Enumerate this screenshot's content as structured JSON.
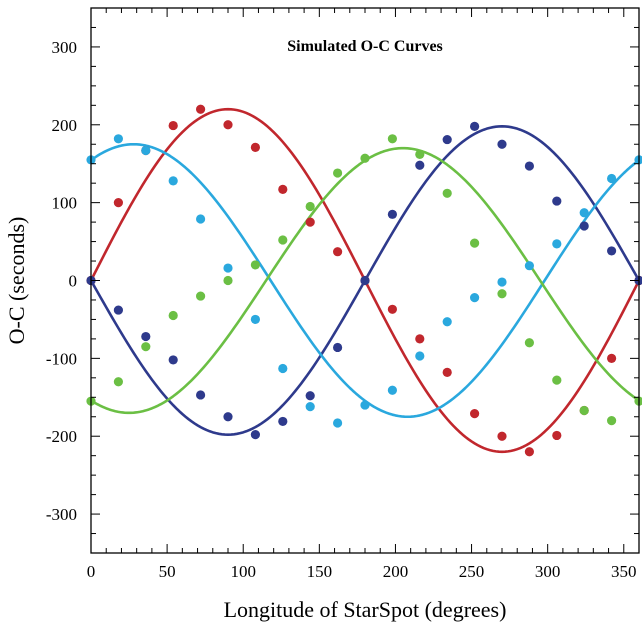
{
  "chart_data": {
    "type": "scatter",
    "title": "Simulated O-C Curves",
    "xlabel": "Longitude of StarSpot (degrees)",
    "ylabel": "O-C (seconds)",
    "xlim": [
      0,
      360
    ],
    "ylim": [
      -350,
      350
    ],
    "x_ticks": [
      0,
      50,
      100,
      150,
      200,
      250,
      300,
      350
    ],
    "y_ticks": [
      -300,
      -200,
      -100,
      0,
      100,
      200,
      300
    ],
    "grid": false,
    "legend": "none",
    "x": [
      0,
      18,
      36,
      54,
      72,
      90,
      108,
      126,
      144,
      162,
      180,
      198,
      216,
      234,
      252,
      270,
      288,
      306,
      324,
      342,
      360
    ],
    "series": [
      {
        "color": "#c1272d",
        "fit": {
          "amplitude": 220,
          "phase_deg": 0,
          "form": "A*sin(x+phase)"
        },
        "values": [
          0,
          100,
          167,
          199,
          220,
          200,
          171,
          117,
          75,
          37,
          0,
          -37,
          -75,
          -118,
          -171,
          -200,
          -220,
          -199,
          -167,
          -100,
          0
        ]
      },
      {
        "color": "#2e3a8c",
        "fit": {
          "amplitude": -198,
          "phase_deg": 0,
          "form": "A*sin(x+phase)"
        },
        "values": [
          0,
          -38,
          -72,
          -102,
          -147,
          -175,
          -198,
          -181,
          -148,
          -86,
          0,
          85,
          148,
          181,
          198,
          175,
          147,
          102,
          70,
          38,
          0
        ]
      },
      {
        "color": "#2aa8de",
        "fit": {
          "amplitude": 175,
          "phase_deg": 62,
          "form": "A*sin(x+phase)"
        },
        "values": [
          155,
          182,
          167,
          128,
          79,
          16,
          -50,
          -113,
          -162,
          -183,
          -160,
          -141,
          -97,
          -53,
          -22,
          -2,
          19,
          47,
          87,
          131,
          155
        ]
      },
      {
        "color": "#6bbf44",
        "fit": {
          "amplitude": 170,
          "phase_deg": -115,
          "form": "A*sin(x+phase)"
        },
        "values": [
          -155,
          -130,
          -85,
          -45,
          -20,
          0,
          20,
          52,
          95,
          138,
          157,
          182,
          162,
          112,
          48,
          -17,
          -80,
          -128,
          -167,
          -180,
          -155
        ]
      }
    ]
  }
}
